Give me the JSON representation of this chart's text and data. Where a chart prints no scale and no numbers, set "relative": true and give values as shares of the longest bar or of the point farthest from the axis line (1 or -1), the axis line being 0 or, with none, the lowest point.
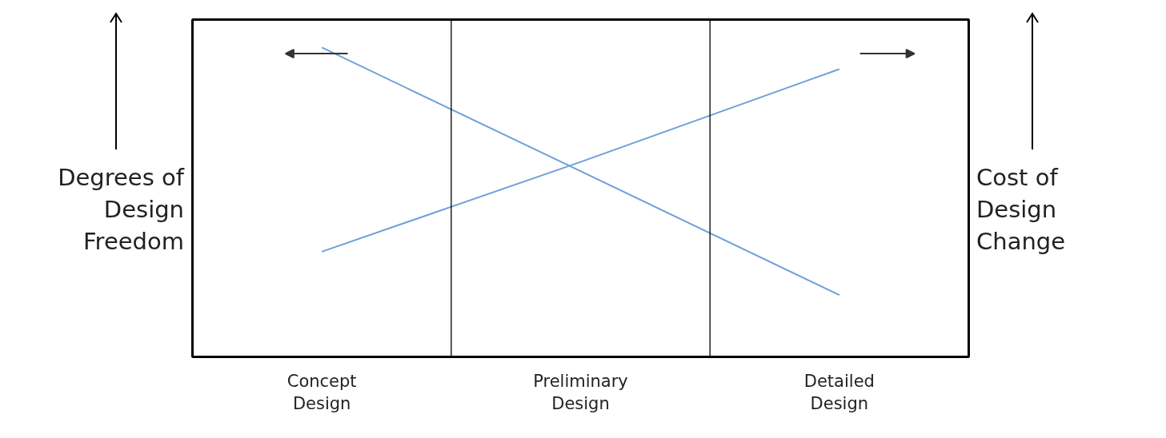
{
  "chart_data": {
    "type": "line",
    "relative": true,
    "ylabel": "Degrees of Design Freedom",
    "y2label": "Cost of Design Change",
    "categories": [
      "Concept Design",
      "Preliminary Design",
      "Detailed Design"
    ],
    "series": [
      {
        "color": "#6f9fd8",
        "values": [
          1.0,
          0.6,
          0.2
        ]
      },
      {
        "color": "#6f9fd8",
        "values": [
          0.34,
          0.63,
          0.93
        ],
        "axis": "y2"
      }
    ],
    "grid": false
  }
}
